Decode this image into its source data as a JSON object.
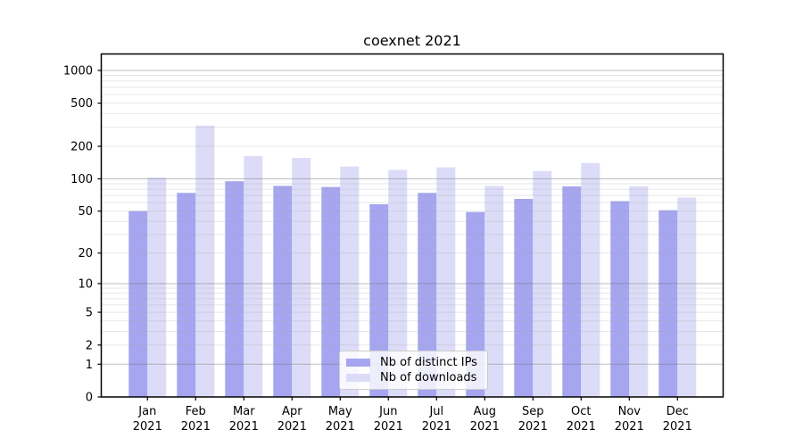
{
  "title": "coexnet 2021",
  "chart_data": {
    "type": "bar",
    "title": "coexnet 2021",
    "xlabel": "",
    "ylabel": "",
    "categories": [
      "Jan 2021",
      "Feb 2021",
      "Mar 2021",
      "Apr 2021",
      "May 2021",
      "Jun 2021",
      "Jul 2021",
      "Aug 2021",
      "Sep 2021",
      "Oct 2021",
      "Nov 2021",
      "Dec 2021"
    ],
    "series": [
      {
        "key": "distinct_ips",
        "name": "Nb of distinct IPs",
        "color": "#a5a5f0",
        "values": [
          50,
          74,
          95,
          86,
          84,
          58,
          74,
          49,
          65,
          85,
          62,
          51
        ]
      },
      {
        "key": "downloads",
        "name": "Nb of downloads",
        "color": "#dcdcf8",
        "values": [
          103,
          310,
          163,
          156,
          130,
          121,
          128,
          86,
          118,
          140,
          85,
          67
        ]
      }
    ],
    "yscale": "log1p",
    "yticks": [
      0,
      1,
      2,
      5,
      10,
      20,
      50,
      100,
      200,
      500,
      1000
    ],
    "ylim": [
      0,
      1000
    ],
    "grid": true,
    "grid_major_values": [
      1,
      10,
      100,
      1000
    ],
    "grid_minor_values": [
      2,
      3,
      4,
      5,
      6,
      7,
      8,
      9,
      20,
      30,
      40,
      50,
      60,
      70,
      80,
      90,
      200,
      300,
      400,
      500,
      600,
      700,
      800,
      900
    ],
    "legend_position": "lower center",
    "frame_color": "#000000",
    "grid_major_color": "rgba(110,110,110,0.45)",
    "grid_minor_color": "rgba(170,170,170,0.28)"
  }
}
